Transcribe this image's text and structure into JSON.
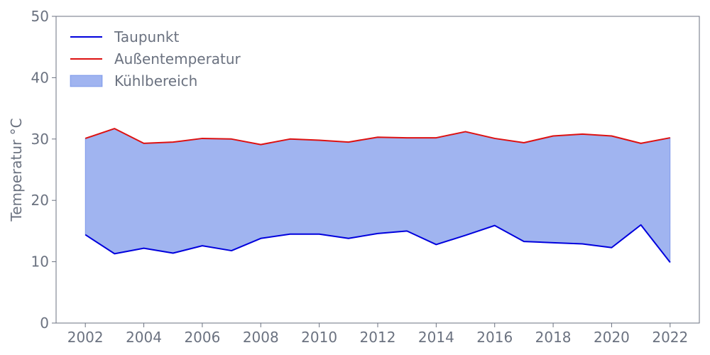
{
  "chart_data": {
    "type": "area",
    "title": "",
    "xlabel": "",
    "ylabel": "Temperatur °C",
    "xlim": [
      2001,
      2023
    ],
    "ylim": [
      0,
      50
    ],
    "x_ticks": [
      2002,
      2004,
      2006,
      2008,
      2010,
      2012,
      2014,
      2016,
      2018,
      2020,
      2022
    ],
    "y_ticks": [
      0,
      10,
      20,
      30,
      40,
      50
    ],
    "grid": false,
    "legend_position": "top-left",
    "x": [
      2002,
      2003,
      2004,
      2005,
      2006,
      2007,
      2008,
      2009,
      2010,
      2011,
      2012,
      2013,
      2014,
      2015,
      2016,
      2017,
      2018,
      2019,
      2020,
      2021,
      2022
    ],
    "series": [
      {
        "name": "Taupunkt",
        "color": "#0000dd",
        "values": [
          14.4,
          11.3,
          12.2,
          11.4,
          12.6,
          11.8,
          13.8,
          14.5,
          14.5,
          13.8,
          14.6,
          15.0,
          12.8,
          14.3,
          15.9,
          13.3,
          13.1,
          12.9,
          12.3,
          16.0,
          9.9
        ]
      },
      {
        "name": "Außentemperatur",
        "color": "#dd1111",
        "values": [
          30.1,
          31.7,
          29.3,
          29.5,
          30.1,
          30.0,
          29.1,
          30.0,
          29.8,
          29.5,
          30.3,
          30.2,
          30.2,
          31.2,
          30.1,
          29.4,
          30.5,
          30.8,
          30.5,
          29.3,
          30.2
        ]
      }
    ],
    "fill": {
      "name": "Kühlbereich",
      "color": "#4169e1",
      "opacity": 0.5,
      "between": [
        "Taupunkt",
        "Außentemperatur"
      ]
    }
  }
}
